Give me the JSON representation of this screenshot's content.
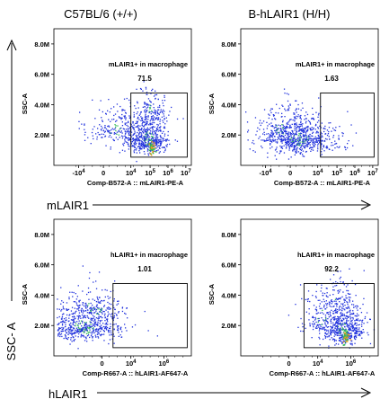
{
  "column_titles": [
    "C57BL/6 (+/+)",
    "B-hLAIR1 (H/H)"
  ],
  "side_labels": {
    "y_axis": "SSC- A",
    "row1_marker": "mLAIR1",
    "row2_marker": "hLAIR1"
  },
  "chart_data": [
    {
      "type": "scatter",
      "genotype": "C57BL/6 (+/+)",
      "gate_label": "mLAIR1+ in macrophage",
      "gate_value": "71.5",
      "ylabel": "SSC-A",
      "xlabel": "Comp-B572-A :: mLAIR1-PE-A",
      "y_ticks": [
        "2.0M",
        "4.0M",
        "6.0M",
        "8.0M"
      ],
      "x_ticks": [
        {
          "base": "-10",
          "exp": "4"
        },
        {
          "base": "0",
          "exp": ""
        },
        {
          "base": "10",
          "exp": "4"
        },
        {
          "base": "10",
          "exp": "5"
        },
        {
          "base": "10",
          "exp": "6"
        },
        {
          "base": "10",
          "exp": "7"
        }
      ],
      "scale": "biexponential",
      "events_pct_in_gate": 71.5
    },
    {
      "type": "scatter",
      "genotype": "B-hLAIR1 (H/H)",
      "gate_label": "mLAIR1+ in macrophage",
      "gate_value": "1.63",
      "ylabel": "SSC-A",
      "xlabel": "Comp-B572-A :: mLAIR1-PE-A",
      "y_ticks": [
        "2.0M",
        "4.0M",
        "6.0M",
        "8.0M"
      ],
      "x_ticks": [
        {
          "base": "-10",
          "exp": "4"
        },
        {
          "base": "0",
          "exp": ""
        },
        {
          "base": "10",
          "exp": "4"
        },
        {
          "base": "10",
          "exp": "5"
        },
        {
          "base": "10",
          "exp": "6"
        },
        {
          "base": "10",
          "exp": "7"
        }
      ],
      "scale": "biexponential",
      "events_pct_in_gate": 1.63
    },
    {
      "type": "scatter",
      "genotype": "C57BL/6 (+/+)",
      "gate_label": "hLAIR1+ in macrophage",
      "gate_value": "1.01",
      "ylabel": "SSC-A",
      "xlabel": "Comp-R667-A :: hLAIR1-AF647-A",
      "y_ticks": [
        "2.0M",
        "4.0M",
        "6.0M",
        "8.0M"
      ],
      "x_ticks": [
        {
          "base": "0",
          "exp": ""
        },
        {
          "base": "10",
          "exp": "4"
        },
        {
          "base": "10",
          "exp": "6"
        }
      ],
      "scale": "biexponential",
      "events_pct_in_gate": 1.01
    },
    {
      "type": "scatter",
      "genotype": "B-hLAIR1 (H/H)",
      "gate_label": "hLAIR1+ in macrophage",
      "gate_value": "92.2",
      "ylabel": "SSC-A",
      "xlabel": "Comp-R667-A :: hLAIR1-AF647-A",
      "y_ticks": [
        "2.0M",
        "4.0M",
        "6.0M",
        "8.0M"
      ],
      "x_ticks": [
        {
          "base": "0",
          "exp": ""
        },
        {
          "base": "10",
          "exp": "4"
        },
        {
          "base": "10",
          "exp": "6"
        }
      ],
      "scale": "biexponential",
      "events_pct_in_gate": 92.2
    }
  ],
  "colors": {
    "dots_low": "#2233dd",
    "dots_mid": "#33bb55",
    "dots_high": "#ee9922",
    "axis": "#000000",
    "gate": "#000000"
  }
}
